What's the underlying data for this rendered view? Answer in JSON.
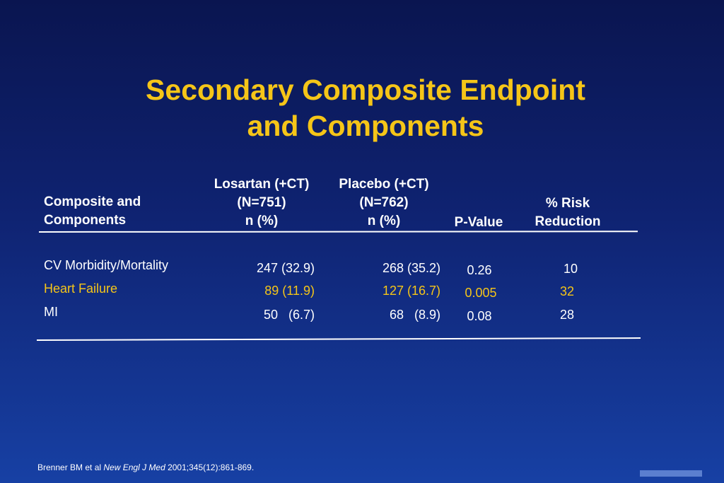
{
  "title": {
    "line1": "Secondary Composite Endpoint",
    "line2": "and Components"
  },
  "table": {
    "headers": {
      "composite": [
        "Composite and",
        "Components"
      ],
      "losartan": [
        "Losartan (+CT)",
        "(N=751)",
        "n (%)"
      ],
      "placebo": [
        "Placebo (+CT)",
        "(N=762)",
        "n (%)"
      ],
      "pvalue": [
        "P-Value"
      ],
      "risk": [
        "% Risk",
        "Reduction"
      ]
    },
    "rows": [
      {
        "label": "CV Morbidity/Mortality",
        "losartan": "247 (32.9)",
        "placebo": "268 (35.2)",
        "pvalue": "0.26",
        "risk": "10",
        "color": "#ffffff"
      },
      {
        "label": "Heart Failure",
        "losartan": "89 (11.9)",
        "placebo": "127 (16.7)",
        "pvalue": "0.005",
        "risk": "32",
        "color": "#f5c518"
      },
      {
        "label": "MI",
        "losartan": "50   (6.7)",
        "placebo": "68   (8.9)",
        "pvalue": "0.08",
        "risk": "28",
        "color": "#ffffff"
      }
    ]
  },
  "citation": {
    "prefix": "Brenner BM et al ",
    "journal": "New Engl J  Med",
    "suffix": " 2001;345(12):861-869."
  },
  "colors": {
    "title": "#f5c518",
    "highlight": "#f5c518",
    "text": "#ffffff"
  }
}
